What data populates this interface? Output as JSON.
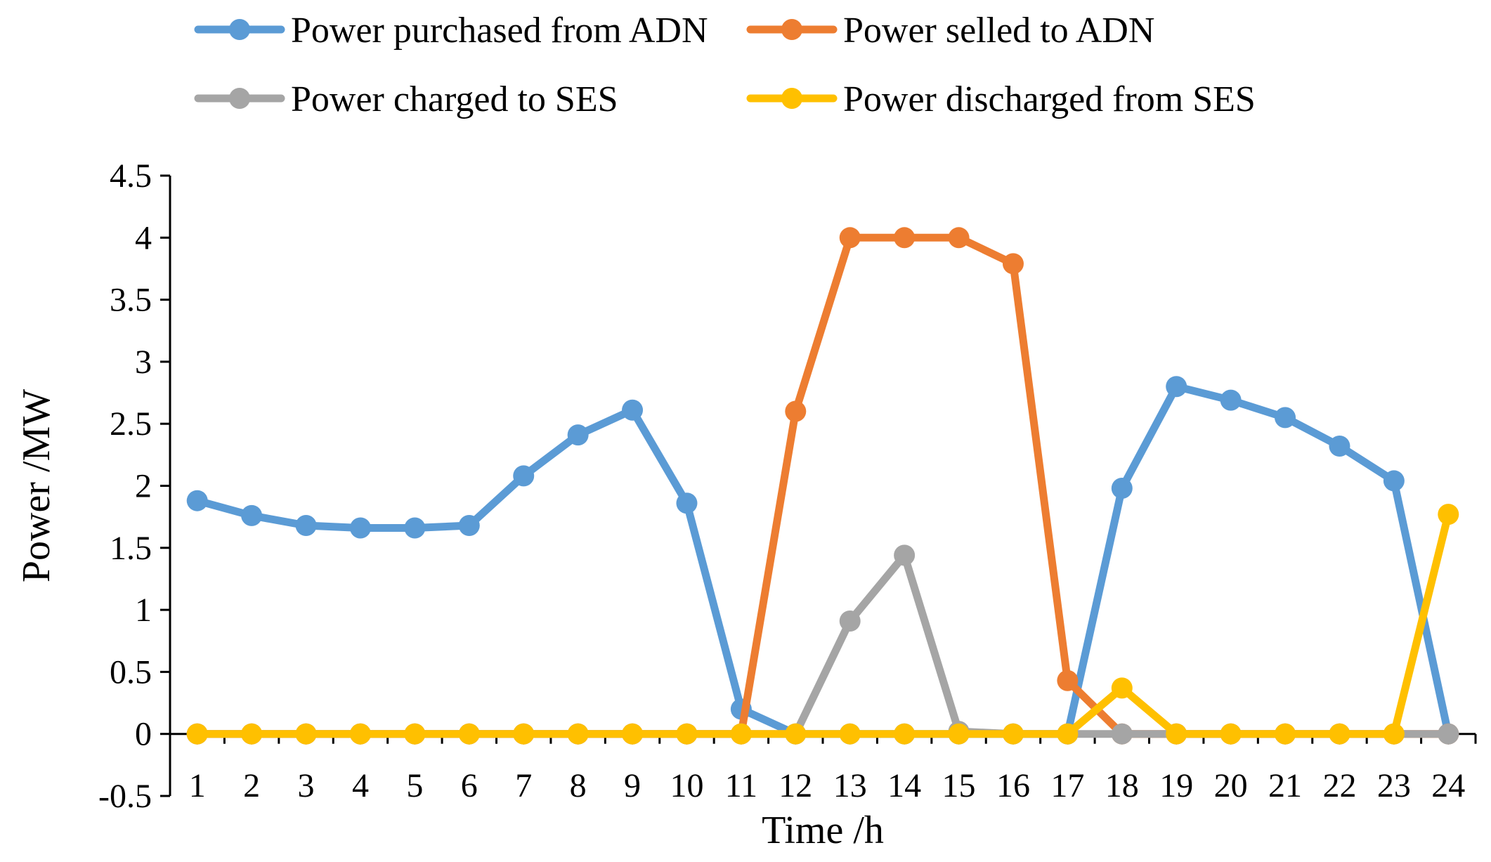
{
  "chart_data": {
    "type": "line",
    "title": "",
    "xlabel": "Time /h",
    "ylabel": "Power /MW",
    "ylim": [
      -0.5,
      4.5
    ],
    "yticks": [
      "-0.5",
      "0",
      "0.5",
      "1",
      "1.5",
      "2",
      "2.5",
      "3",
      "3.5",
      "4",
      "4.5"
    ],
    "categories": [
      "1",
      "2",
      "3",
      "4",
      "5",
      "6",
      "7",
      "8",
      "9",
      "10",
      "11",
      "12",
      "13",
      "14",
      "15",
      "16",
      "17",
      "18",
      "19",
      "20",
      "21",
      "22",
      "23",
      "24"
    ],
    "grid": false,
    "legend_position": "top",
    "series": [
      {
        "name": "Power purchased from ADN",
        "color": "#5B9BD5",
        "values": [
          1.88,
          1.76,
          1.68,
          1.66,
          1.66,
          1.68,
          2.08,
          2.41,
          2.61,
          1.86,
          0.2,
          0.0,
          0.0,
          0.0,
          0.0,
          0.0,
          0.0,
          1.98,
          2.8,
          2.69,
          2.55,
          2.32,
          2.04,
          0.0
        ]
      },
      {
        "name": "Power selled to ADN",
        "color": "#ED7D31",
        "values": [
          0,
          0,
          0,
          0,
          0,
          0,
          0,
          0,
          0,
          0,
          0,
          2.6,
          4.0,
          4.0,
          4.0,
          3.79,
          0.43,
          0,
          0,
          0,
          0,
          0,
          0,
          0
        ]
      },
      {
        "name": "Power charged to SES",
        "color": "#A5A5A5",
        "values": [
          0,
          0,
          0,
          0,
          0,
          0,
          0,
          0,
          0,
          0,
          0,
          0,
          0.91,
          1.44,
          0.02,
          0,
          0,
          0,
          0,
          0,
          0,
          0,
          0,
          0
        ]
      },
      {
        "name": "Power discharged from SES",
        "color": "#FFC000",
        "values": [
          0,
          0,
          0,
          0,
          0,
          0,
          0,
          0,
          0,
          0,
          0,
          0,
          0,
          0,
          0,
          0,
          0,
          0.37,
          0,
          0,
          0,
          0,
          0,
          1.77
        ]
      }
    ]
  }
}
